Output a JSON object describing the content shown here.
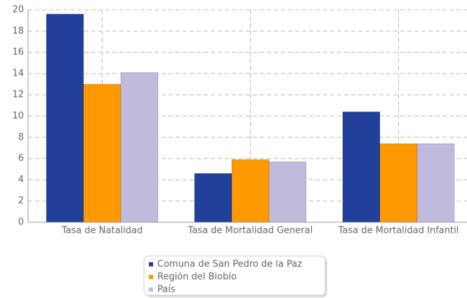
{
  "chart_data": {
    "type": "bar",
    "categories": [
      "Tasa de Natalidad",
      "Tasa de Mortalidad General",
      "Tasa de Mortalidad Infantil"
    ],
    "series": [
      {
        "name": "Comuna de San Pedro de la Paz",
        "color": "#21409a",
        "values": [
          19.6,
          4.6,
          10.4
        ]
      },
      {
        "name": "Región del Biobío",
        "color": "#ff9900",
        "values": [
          13.0,
          5.9,
          7.4
        ]
      },
      {
        "name": "País",
        "color": "#c0bbdc",
        "values": [
          14.1,
          5.7,
          7.4
        ]
      }
    ],
    "ylim": [
      0,
      20
    ],
    "yticks": [
      0,
      2,
      4,
      6,
      8,
      10,
      12,
      14,
      16,
      18,
      20
    ],
    "grid": true,
    "legend": "bottom"
  }
}
